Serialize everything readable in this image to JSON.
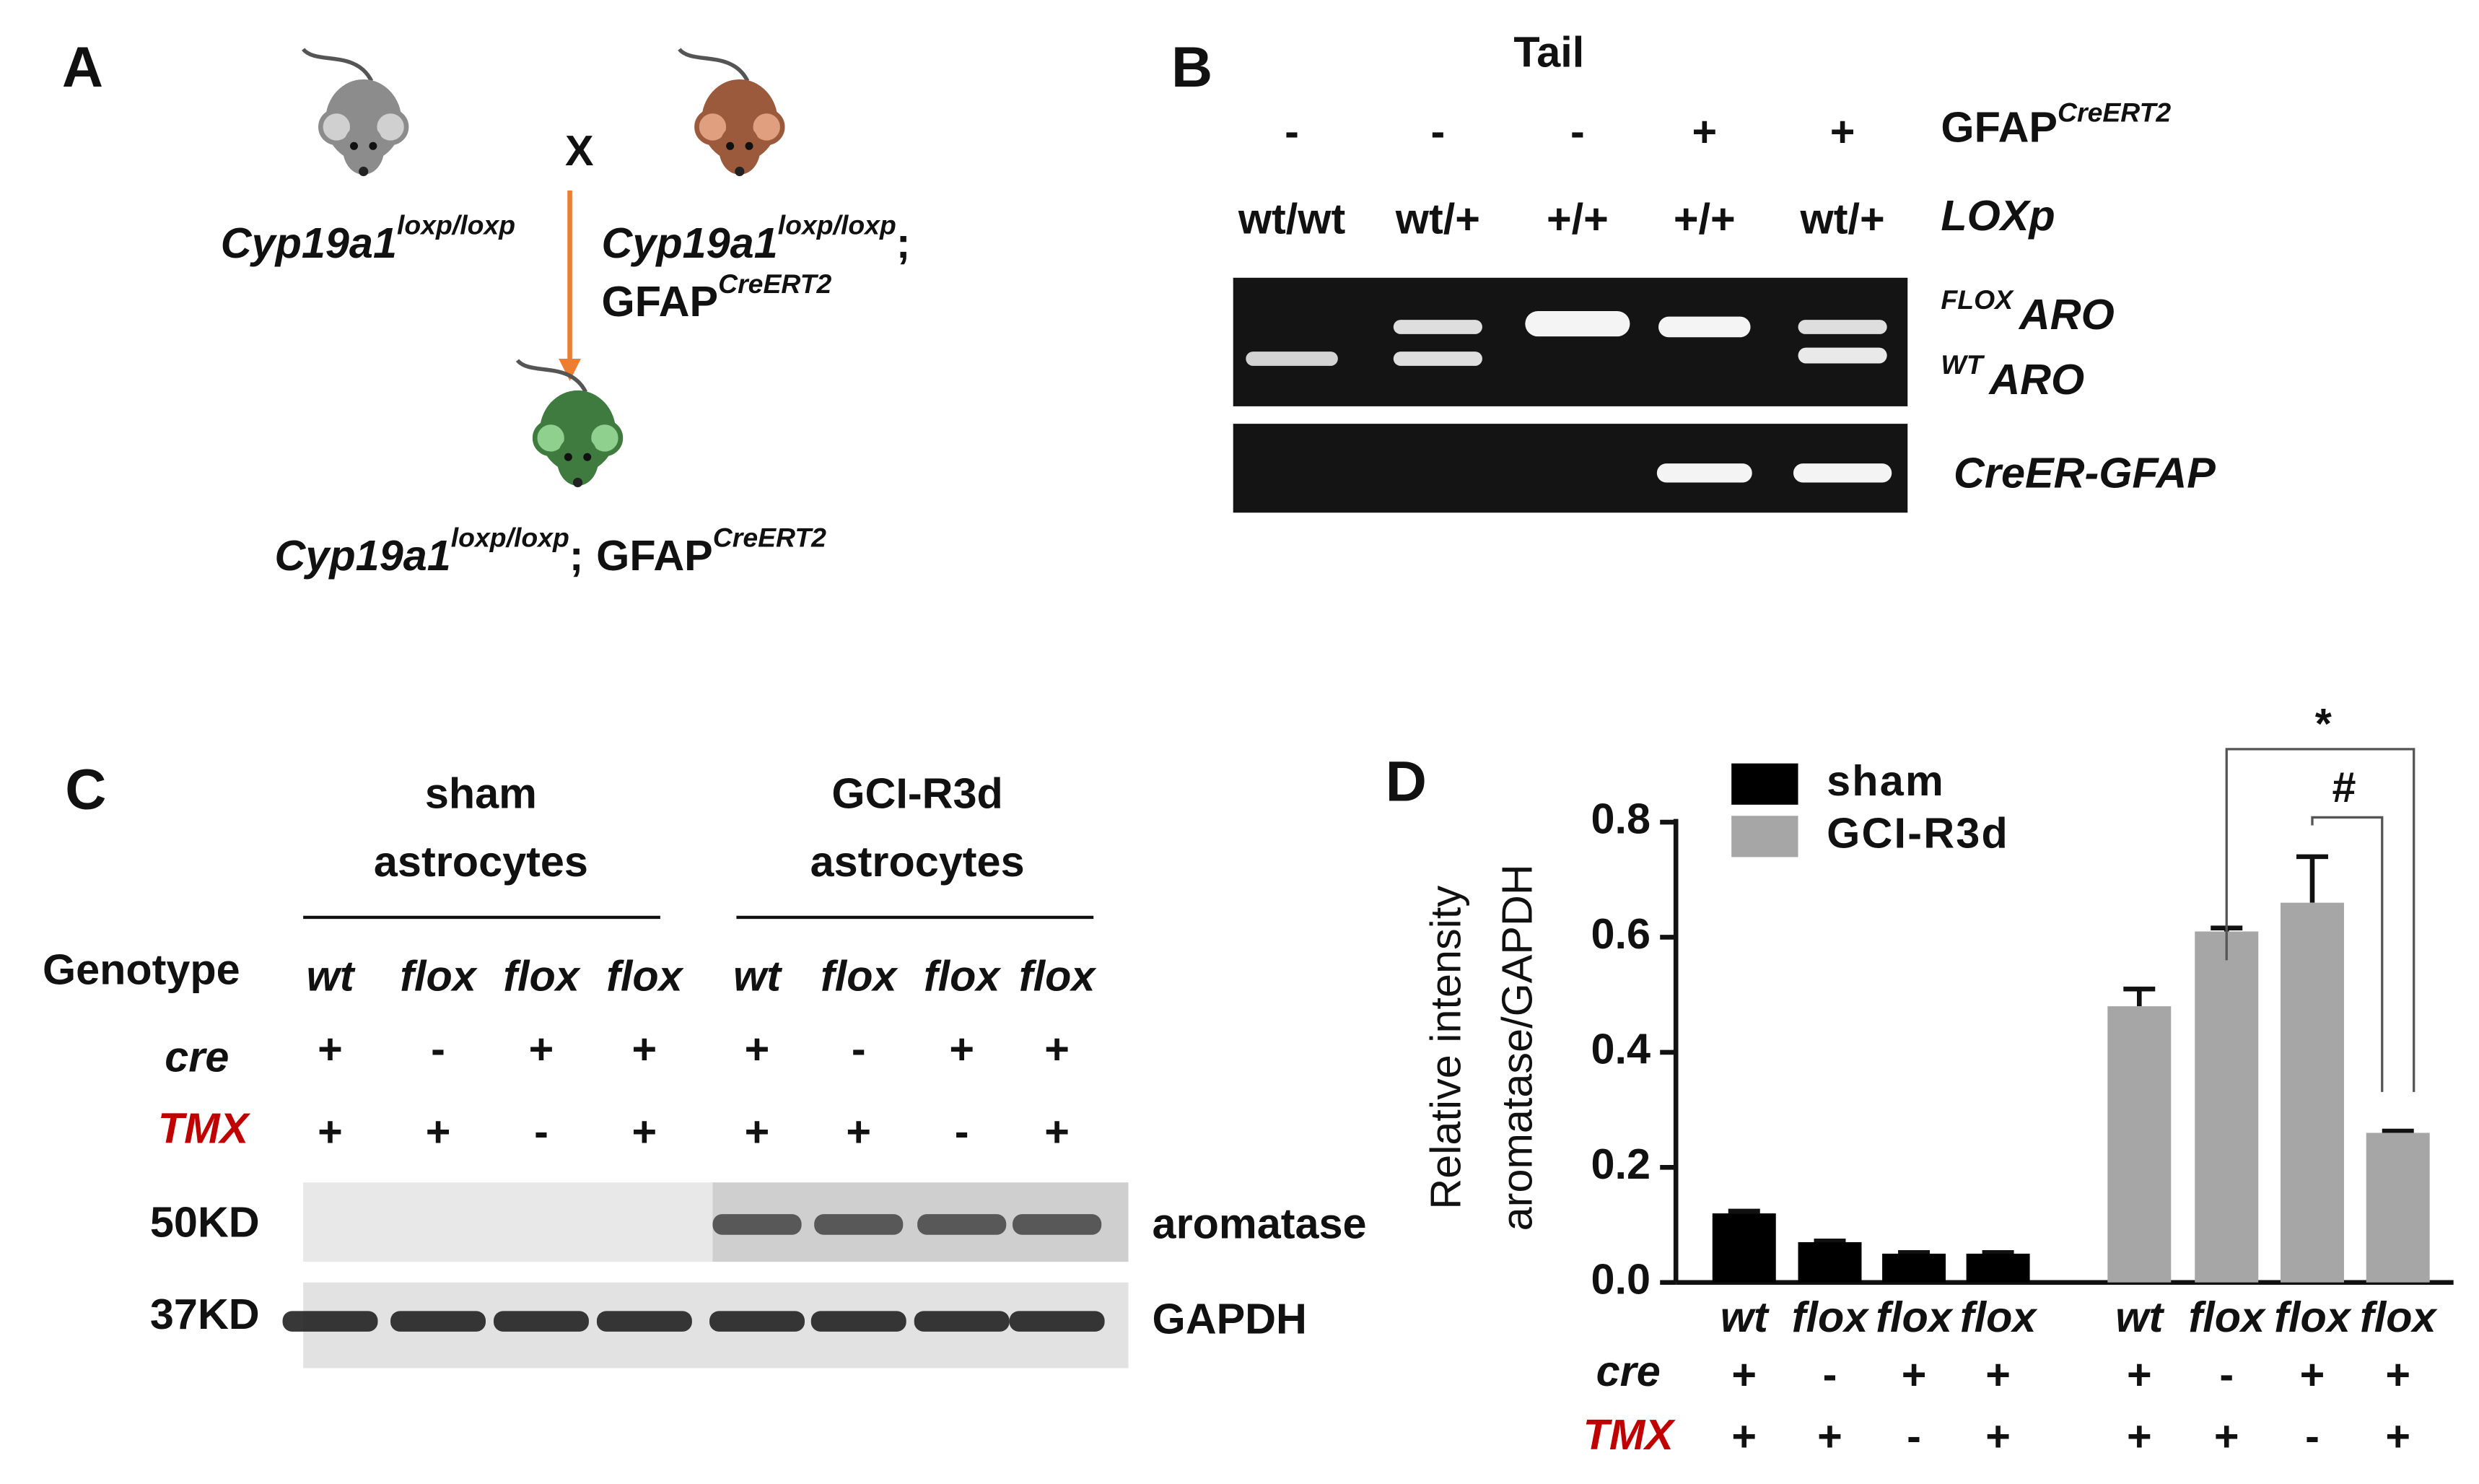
{
  "panel_a": {
    "label": "A",
    "cross": "X",
    "parent1": {
      "base": "Cyp19a1",
      "sup": "loxp/loxp"
    },
    "parent2": {
      "base": "Cyp19a1",
      "sup": "loxp/loxp",
      "suffix": ";",
      "base2": "GFAP",
      "sup2": "CreERT2"
    },
    "offspring": {
      "base": "Cyp19a1",
      "sup": "loxp/loxp",
      "sep": ";",
      "base2": "GFAP",
      "sup2": "CreERT2"
    }
  },
  "panel_b": {
    "label": "B",
    "title": "Tail",
    "gfap_label": {
      "base": "GFAP",
      "sup": "CreERT2"
    },
    "gfap": [
      "-",
      "-",
      "-",
      "+",
      "+"
    ],
    "loxp_label": "LOXp",
    "loxp": [
      "wt/wt",
      "wt/+",
      "+/+",
      "+/+",
      "wt/+"
    ],
    "bands": [
      {
        "sup": "FLOX",
        "base": "ARO"
      },
      {
        "sup": "WT",
        "base": "ARO"
      },
      {
        "base": "CreER-GFAP"
      }
    ]
  },
  "panel_c": {
    "label": "C",
    "groups": [
      [
        "sham",
        "astrocytes"
      ],
      [
        "GCI-R3d",
        "astrocytes"
      ]
    ],
    "genotype_label": "Genotype",
    "genotype": [
      "wt",
      "flox",
      "flox",
      "flox",
      "wt",
      "flox",
      "flox",
      "flox"
    ],
    "cre_label": "cre",
    "cre": [
      "+",
      "-",
      "+",
      "+",
      "+",
      "-",
      "+",
      "+"
    ],
    "tmx_label": "TMX",
    "tmx": [
      "+",
      "+",
      "-",
      "+",
      "+",
      "+",
      "-",
      "+"
    ],
    "markers": [
      "50KD",
      "37KD"
    ],
    "proteins": [
      "aromatase",
      "GAPDH"
    ]
  },
  "chart_data": {
    "type": "bar",
    "label": "D",
    "y_label": [
      "Relative intensity",
      "aromatase/GAPDH"
    ],
    "categories": [
      "wt",
      "flox",
      "flox",
      "flox",
      "wt",
      "flox",
      "flox",
      "flox"
    ],
    "series": [
      {
        "name": "sham",
        "color": "#000000",
        "values": [
          0.12,
          0.07,
          0.05,
          0.05,
          null,
          null,
          null,
          null
        ],
        "errors": [
          0.004,
          0.002,
          0.002,
          0.002,
          null,
          null,
          null,
          null
        ]
      },
      {
        "name": "GCI-R3d",
        "color": "#a6a6a6",
        "values": [
          null,
          null,
          null,
          null,
          0.48,
          0.61,
          0.66,
          0.26
        ],
        "errors": [
          null,
          null,
          null,
          null,
          0.03,
          0.006,
          0.08,
          0.003
        ]
      }
    ],
    "ylim": [
      0,
      0.8
    ],
    "yticks": [
      {
        "value": 0,
        "label": "0.0"
      },
      0.2,
      0.4,
      0.6,
      0.8
    ],
    "cre_label": "cre",
    "cre": [
      "+",
      "-",
      "+",
      "+",
      "+",
      "-",
      "+",
      "+"
    ],
    "tmx_label": "TMX",
    "tmx": [
      "+",
      "+",
      "-",
      "+",
      "+",
      "+",
      "-",
      "+"
    ],
    "annotations": [
      "*",
      "#"
    ]
  }
}
